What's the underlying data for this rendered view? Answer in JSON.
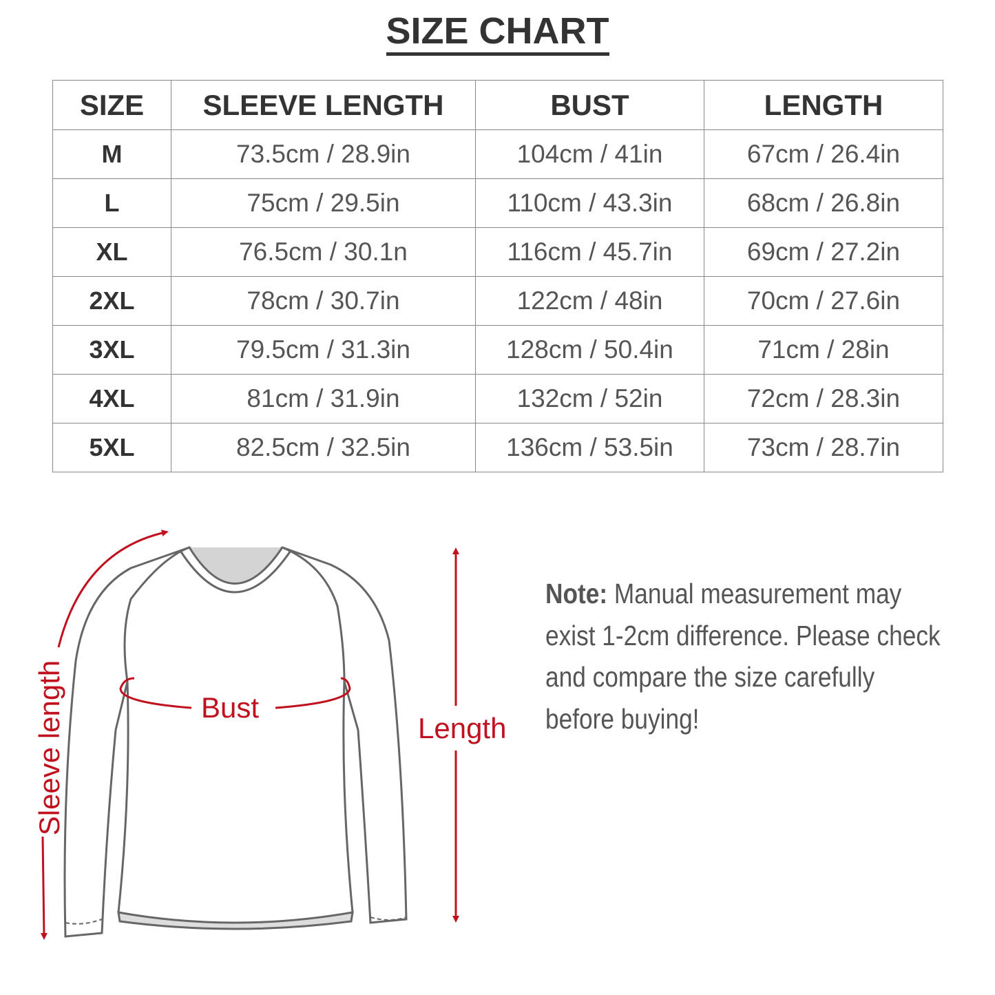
{
  "title": "SIZE CHART",
  "table": {
    "headers": [
      "SIZE",
      "SLEEVE LENGTH",
      "BUST",
      "LENGTH"
    ],
    "rows": [
      [
        "M",
        "73.5cm / 28.9in",
        "104cm / 41in",
        "67cm / 26.4in"
      ],
      [
        "L",
        "75cm / 29.5in",
        "110cm / 43.3in",
        "68cm / 26.8in"
      ],
      [
        "XL",
        "76.5cm / 30.1n",
        "116cm / 45.7in",
        "69cm / 27.2in"
      ],
      [
        "2XL",
        "78cm / 30.7in",
        "122cm / 48in",
        "70cm / 27.6in"
      ],
      [
        "3XL",
        "79.5cm / 31.3in",
        "128cm / 50.4in",
        "71cm / 28in"
      ],
      [
        "4XL",
        "81cm / 31.9in",
        "132cm / 52in",
        "72cm / 28.3in"
      ],
      [
        "5XL",
        "82.5cm / 32.5in",
        "136cm / 53.5in",
        "73cm / 28.7in"
      ]
    ]
  },
  "diagram": {
    "sleeve_label": "Sleeve length",
    "bust_label": "Bust",
    "length_label": "Length",
    "accent_color": "#c0111f"
  },
  "note": {
    "label": "Note:",
    "text": " Manual measurement may exist 1-2cm difference. Please check and compare the size carefully before buying!"
  }
}
